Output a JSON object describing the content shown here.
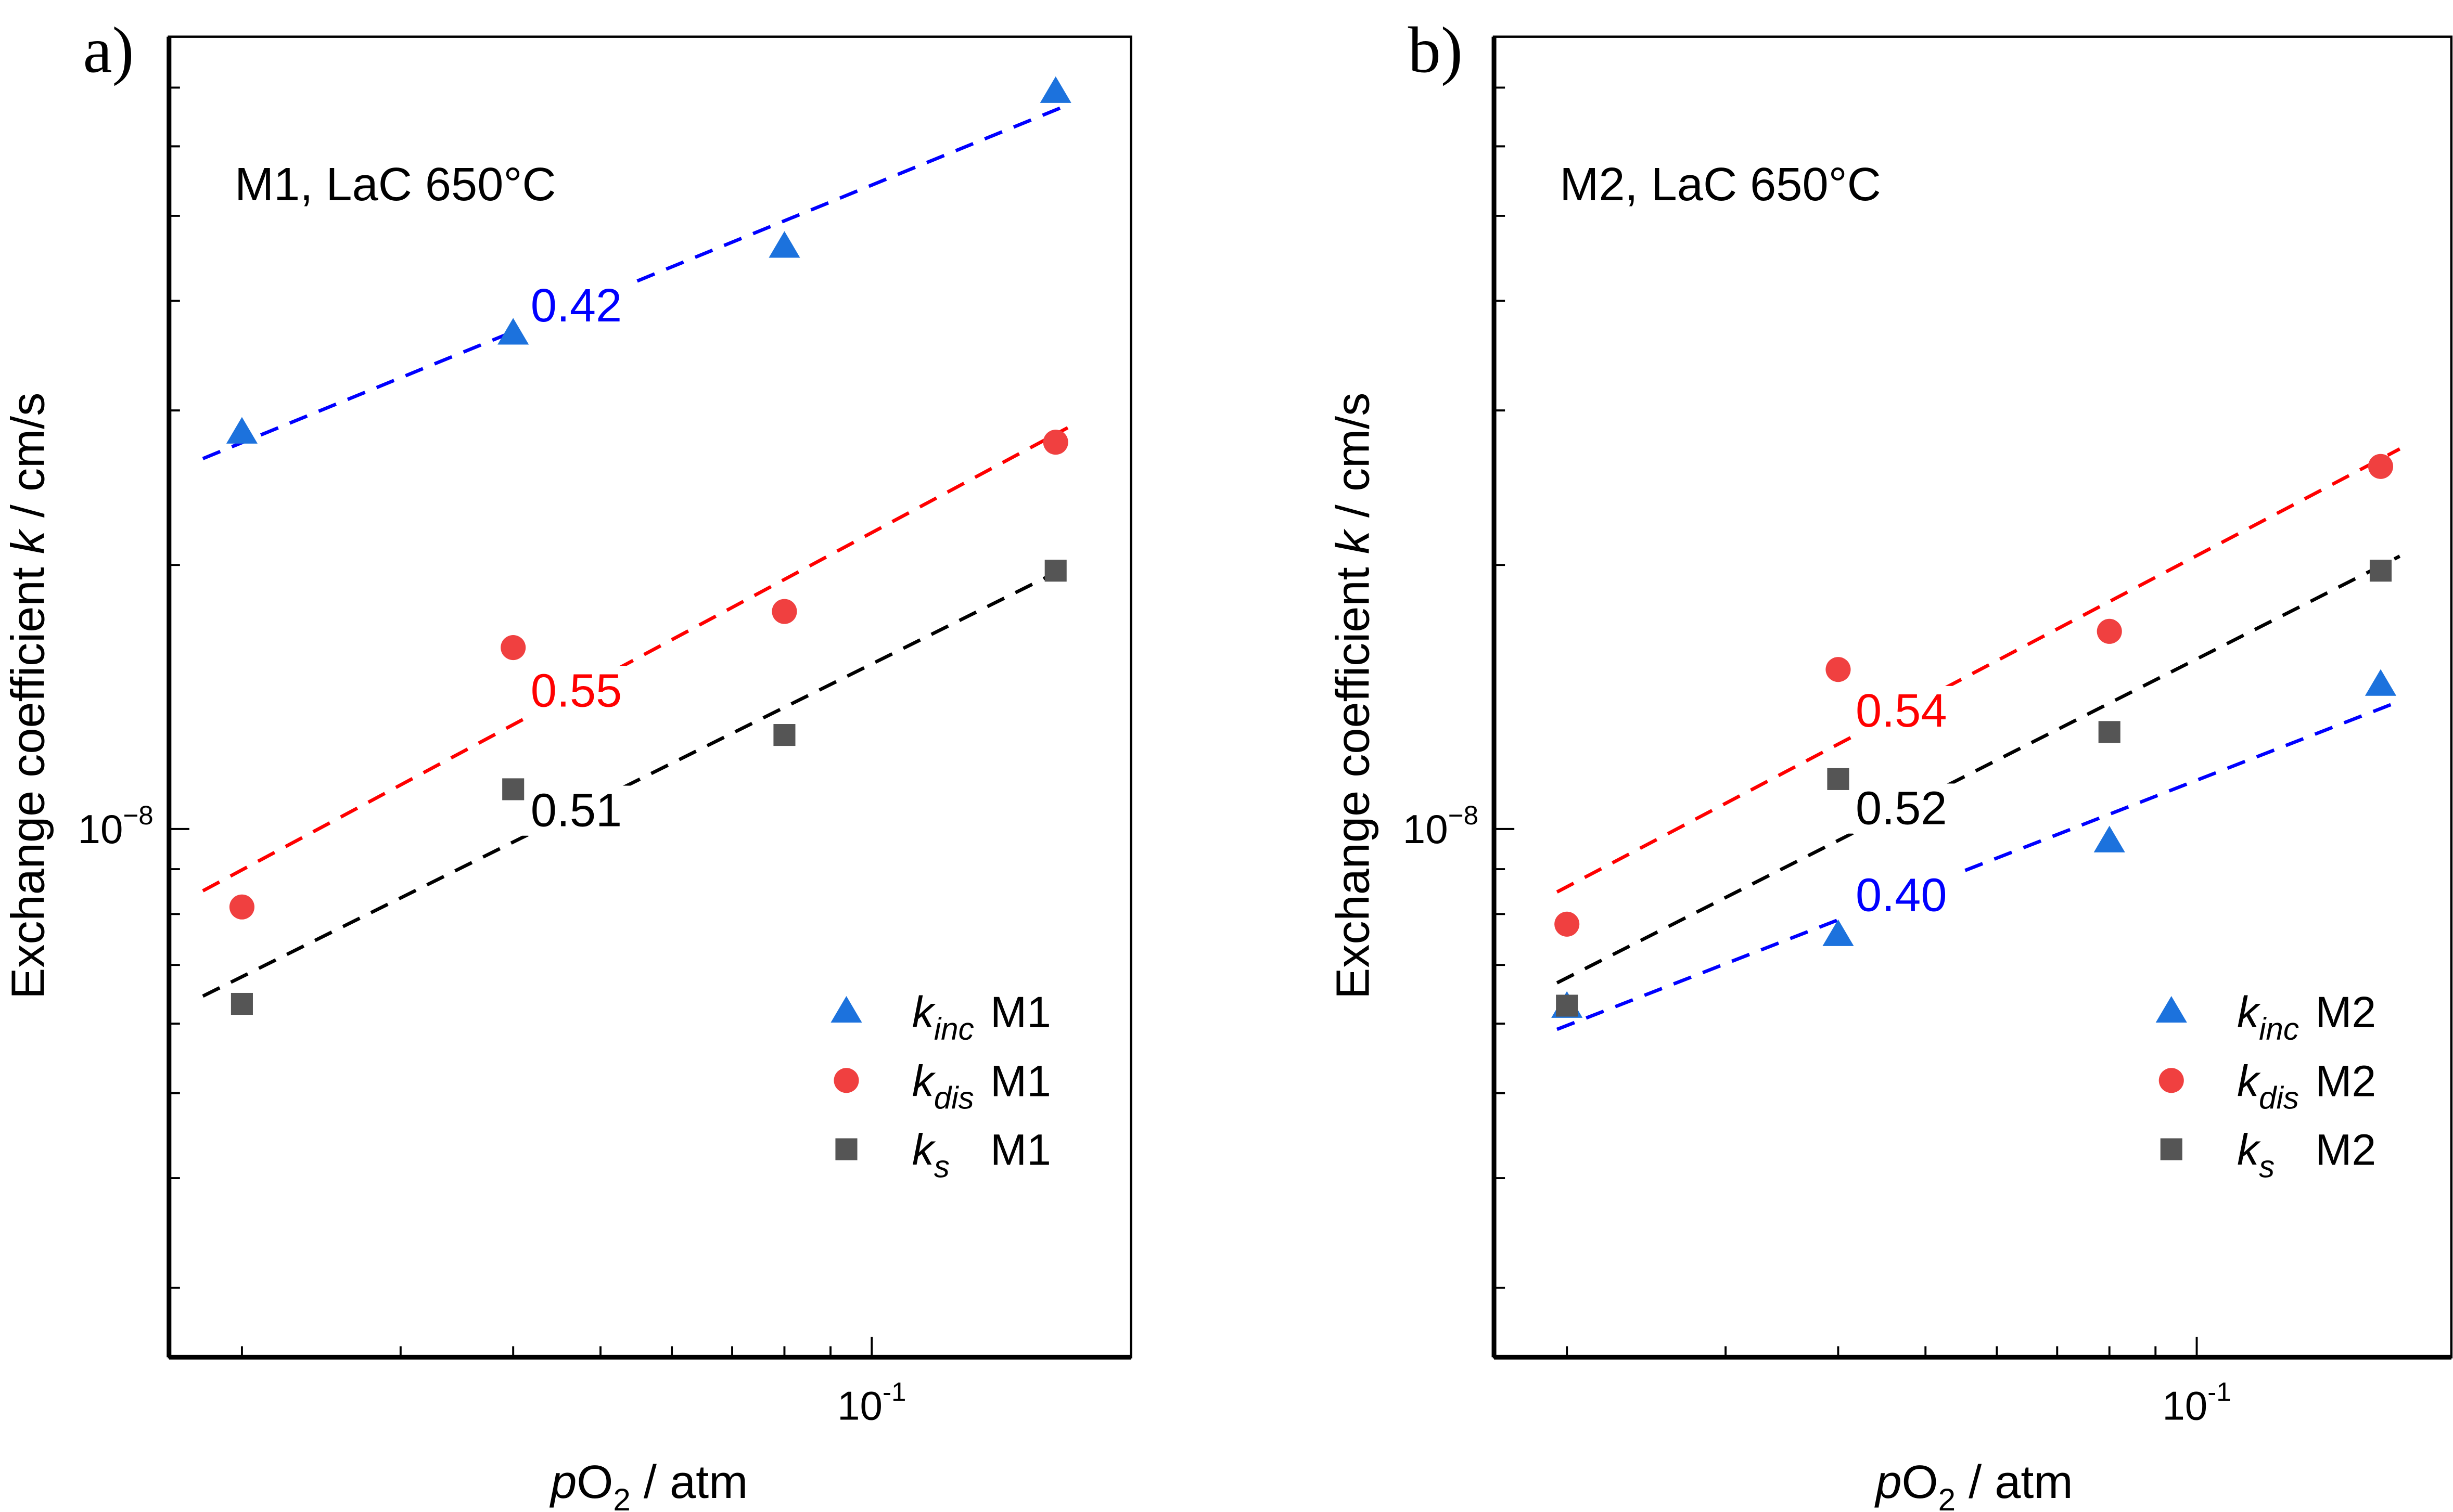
{
  "chart_data": [
    {
      "panel_label": "a)",
      "type": "scatter",
      "title": "M1, LaC 650°C",
      "xlabel": {
        "italic": "p",
        "main": "O",
        "sub": "2",
        "rest": " / atm"
      },
      "ylabel": {
        "pre": "Exchange coefficient ",
        "italic": "k",
        "post": " / cm/s"
      },
      "x_scale": "log",
      "y_scale": "log",
      "xlim": [
        0.0166,
        0.194
      ],
      "ylim": [
        2.5e-09,
        8e-08
      ],
      "x_tick_labels": [
        {
          "value": 0.1,
          "base": "10",
          "exp": "-1"
        }
      ],
      "y_tick_labels": [
        {
          "value": 1e-08,
          "base": "10",
          "exp": "−8"
        }
      ],
      "grid": false,
      "legend_placement": "bottom-right",
      "series": [
        {
          "key": "inc",
          "name_k": "k",
          "name_sub": "inc",
          "name_tail": "M1",
          "marker": "triangle",
          "color": "#1c72dd",
          "fit_color": "#0000ff",
          "x": [
            0.02,
            0.04,
            0.08,
            0.16
          ],
          "y": [
            2.83e-08,
            3.67e-08,
            4.61e-08,
            6.92e-08
          ],
          "fit_slope": 0.42,
          "fit_label": "0.42"
        },
        {
          "key": "dis",
          "name_k": "k",
          "name_sub": "dis",
          "name_tail": "M1",
          "marker": "circle",
          "color": "#f04040",
          "fit_color": "#ff0000",
          "x": [
            0.02,
            0.04,
            0.08,
            0.16
          ],
          "y": [
            8.15e-09,
            1.61e-08,
            1.77e-08,
            2.76e-08
          ],
          "fit_slope": 0.55,
          "fit_label": "0.55"
        },
        {
          "key": "s",
          "name_k": "k",
          "name_sub": "s",
          "name_tail": "M1",
          "marker": "square",
          "color": "#555555",
          "fit_color": "#000000",
          "x": [
            0.02,
            0.04,
            0.08,
            0.16
          ],
          "y": [
            6.32e-09,
            1.11e-08,
            1.28e-08,
            1.97e-08
          ],
          "fit_slope": 0.51,
          "fit_label": "0.51"
        }
      ]
    },
    {
      "panel_label": "b)",
      "type": "scatter",
      "title": "M2, LaC 650°C",
      "xlabel": {
        "italic": "p",
        "main": "O",
        "sub": "2",
        "rest": " / atm"
      },
      "ylabel": {
        "pre": "Exchange coefficient ",
        "italic": "k",
        "post": " / cm/s"
      },
      "x_scale": "log",
      "y_scale": "log",
      "xlim": [
        0.0166,
        0.194
      ],
      "ylim": [
        2.5e-09,
        8e-08
      ],
      "x_tick_labels": [
        {
          "value": 0.1,
          "base": "10",
          "exp": "-1"
        }
      ],
      "y_tick_labels": [
        {
          "value": 1e-08,
          "base": "10",
          "exp": "−8"
        }
      ],
      "grid": false,
      "legend_placement": "bottom-right",
      "series": [
        {
          "key": "inc",
          "name_k": "k",
          "name_sub": "inc",
          "name_tail": "M2",
          "marker": "triangle",
          "color": "#1c72dd",
          "fit_color": "#0000ff",
          "x": [
            0.02,
            0.04,
            0.08,
            0.16
          ],
          "y": [
            6.27e-09,
            7.57e-09,
            9.68e-09,
            1.46e-08
          ],
          "fit_slope": 0.4,
          "fit_label": "0.40"
        },
        {
          "key": "dis",
          "name_k": "k",
          "name_sub": "dis",
          "name_tail": "M2",
          "marker": "circle",
          "color": "#f04040",
          "fit_color": "#ff0000",
          "x": [
            0.02,
            0.04,
            0.08,
            0.16
          ],
          "y": [
            7.79e-09,
            1.52e-08,
            1.68e-08,
            2.59e-08
          ],
          "fit_slope": 0.54,
          "fit_label": "0.54"
        },
        {
          "key": "s",
          "name_k": "k",
          "name_sub": "s",
          "name_tail": "M2",
          "marker": "square",
          "color": "#555555",
          "fit_color": "#000000",
          "x": [
            0.02,
            0.04,
            0.08,
            0.16
          ],
          "y": [
            6.29e-09,
            1.14e-08,
            1.29e-08,
            1.97e-08
          ],
          "fit_slope": 0.52,
          "fit_label": "0.52"
        }
      ]
    }
  ]
}
